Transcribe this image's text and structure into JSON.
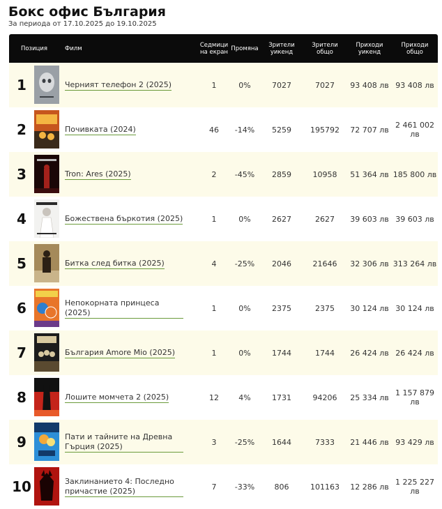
{
  "header": {
    "title": "Бокс офис България",
    "period": "За периода от 17.10.2025 до 19.10.2025"
  },
  "columns": {
    "position": "Позиция",
    "film": "Филм",
    "weeks": "Седмици на екран",
    "change": "Промяна",
    "viewers_weekend": "Зрители уикенд",
    "viewers_total": "Зрители общо",
    "revenue_weekend": "Приходи уикенд",
    "revenue_total": "Приходи общо"
  },
  "rows": [
    {
      "rank": "1",
      "title": "Черният телефон 2 (2025)",
      "weeks": "1",
      "change": "0%",
      "viewers_weekend": "7027",
      "viewers_total": "7027",
      "revenue_weekend": "93 408 лв",
      "revenue_total": "93 408 лв",
      "poster": "grey-face",
      "colors": [
        "#9aa0a6",
        "#d8dadc",
        "#3b3f44"
      ]
    },
    {
      "rank": "2",
      "title": "Почивката (2024)",
      "weeks": "46",
      "change": "-14%",
      "viewers_weekend": "5259",
      "viewers_total": "195792",
      "revenue_weekend": "72 707 лв",
      "revenue_total": "2 461 002 лв",
      "poster": "orange-text",
      "colors": [
        "#c6561d",
        "#f4b542",
        "#3a2a1a"
      ]
    },
    {
      "rank": "3",
      "title": "Tron: Ares (2025)",
      "weeks": "2",
      "change": "-45%",
      "viewers_weekend": "2859",
      "viewers_total": "10958",
      "revenue_weekend": "51 364 лв",
      "revenue_total": "185 800 лв",
      "poster": "dark-red",
      "colors": [
        "#1a0707",
        "#a3211b",
        "#3a0d0d"
      ]
    },
    {
      "rank": "4",
      "title": "Божествена бъркотия (2025)",
      "weeks": "1",
      "change": "0%",
      "viewers_weekend": "2627",
      "viewers_total": "2627",
      "revenue_weekend": "39 603 лв",
      "revenue_total": "39 603 лв",
      "poster": "white-figure",
      "colors": [
        "#f2f2f0",
        "#2a2a2a",
        "#c9c4bd"
      ]
    },
    {
      "rank": "5",
      "title": "Битка след битка (2025)",
      "weeks": "4",
      "change": "-25%",
      "viewers_weekend": "2046",
      "viewers_total": "21646",
      "revenue_weekend": "32 306 лв",
      "revenue_total": "313 264 лв",
      "poster": "brown-figure",
      "colors": [
        "#a58a5a",
        "#2b2015",
        "#c9b48a"
      ]
    },
    {
      "rank": "6",
      "title": "Непокорната принцеса (2025)",
      "weeks": "1",
      "change": "0%",
      "viewers_weekend": "2375",
      "viewers_total": "2375",
      "revenue_weekend": "30 124 лв",
      "revenue_total": "30 124 лв",
      "poster": "colorful",
      "colors": [
        "#e8752a",
        "#2f7fcf",
        "#f2d04a"
      ]
    },
    {
      "rank": "7",
      "title": "България Amore Mio (2025)",
      "weeks": "1",
      "change": "0%",
      "viewers_weekend": "1744",
      "viewers_total": "1744",
      "revenue_weekend": "26 424 лв",
      "revenue_total": "26 424 лв",
      "poster": "dark-group",
      "colors": [
        "#1c1c1c",
        "#d8c9a0",
        "#5a4a30"
      ]
    },
    {
      "rank": "8",
      "title": "Лошите момчета 2 (2025)",
      "weeks": "12",
      "change": "4%",
      "viewers_weekend": "1731",
      "viewers_total": "94206",
      "revenue_weekend": "25 334 лв",
      "revenue_total": "1 157 879 лв",
      "poster": "red-silhouette",
      "colors": [
        "#c4241a",
        "#111111",
        "#e85a2a"
      ]
    },
    {
      "rank": "9",
      "title": "Пати и тайните на Древна Гърция (2025)",
      "weeks": "3",
      "change": "-25%",
      "viewers_weekend": "1644",
      "viewers_total": "7333",
      "revenue_weekend": "21 446 лв",
      "revenue_total": "93 429 лв",
      "poster": "blue-cartoon",
      "colors": [
        "#2d8fd8",
        "#f2a93a",
        "#123a6a"
      ]
    },
    {
      "rank": "10",
      "title": "Заклинанието 4: Последно причастие (2025)",
      "weeks": "7",
      "change": "-33%",
      "viewers_weekend": "806",
      "viewers_total": "101163",
      "revenue_weekend": "12 286 лв",
      "revenue_total": "1 225 227 лв",
      "poster": "red-demon",
      "colors": [
        "#b0140f",
        "#1a0303",
        "#e33a1c"
      ]
    }
  ]
}
